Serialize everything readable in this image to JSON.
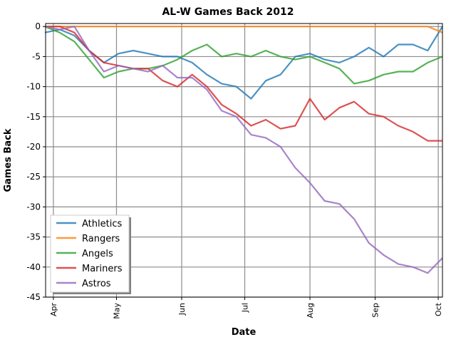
{
  "chart_data": {
    "type": "line",
    "title": "AL-W Games Back 2012",
    "x_label": "Date",
    "y_label": "Games Back",
    "x": [
      88,
      95,
      102,
      109,
      116,
      123,
      130,
      137,
      144,
      151,
      158,
      165,
      172,
      179,
      186,
      193,
      200,
      207,
      214,
      221,
      228,
      235,
      242,
      249,
      256,
      263,
      270,
      277
    ],
    "series": [
      {
        "name": "Athletics",
        "color": "#1f77b4",
        "values": [
          -1,
          -0.5,
          -1.5,
          -4,
          -6,
          -4.5,
          -4,
          -4.5,
          -5,
          -5,
          -6,
          -8,
          -9.5,
          -10,
          -12,
          -9,
          -8,
          -5,
          -4.5,
          -5.5,
          -6,
          -5,
          -3.5,
          -5,
          -3,
          -3,
          -4,
          0
        ]
      },
      {
        "name": "Rangers",
        "color": "#ff7f0e",
        "values": [
          0,
          0,
          0,
          0,
          0,
          0,
          0,
          0,
          0,
          0,
          0,
          0,
          0,
          0,
          0,
          0,
          0,
          0,
          0,
          0,
          0,
          0,
          0,
          0,
          0,
          0,
          0,
          -1
        ]
      },
      {
        "name": "Angels",
        "color": "#2ca02c",
        "values": [
          0,
          -1,
          -2.5,
          -5.5,
          -8.5,
          -7.5,
          -7,
          -7,
          -6.5,
          -5.5,
          -4,
          -3,
          -5,
          -4.5,
          -5,
          -4,
          -5,
          -5.5,
          -5,
          -6,
          -7,
          -9.5,
          -9,
          -8,
          -7.5,
          -7.5,
          -6,
          -5
        ]
      },
      {
        "name": "Mariners",
        "color": "#d62728",
        "values": [
          0,
          0,
          -1,
          -4,
          -6,
          -6.5,
          -7,
          -7,
          -9,
          -10,
          -8,
          -10,
          -13,
          -14.5,
          -16.5,
          -15.5,
          -17,
          -16.5,
          -12,
          -15.5,
          -13.5,
          -12.5,
          -14.5,
          -15,
          -16.5,
          -17.5,
          -19,
          -19
        ]
      },
      {
        "name": "Astros",
        "color": "#9467bd",
        "values": [
          0,
          -0.5,
          0,
          -4,
          -7.5,
          -6.5,
          -7,
          -7.5,
          -6.5,
          -8.5,
          -8.5,
          -10.5,
          -14,
          -15,
          -18,
          -18.5,
          -20,
          -23.5,
          -26,
          -29,
          -29.5,
          -32,
          -36,
          -38,
          -39.5,
          -40,
          -41,
          -38.5
        ]
      }
    ],
    "xlim": [
      88.3,
      277
    ],
    "xticks": [
      {
        "value": 92,
        "label": "Apr"
      },
      {
        "value": 122,
        "label": "May"
      },
      {
        "value": 153,
        "label": "Jun"
      },
      {
        "value": 183,
        "label": "Jul"
      },
      {
        "value": 214,
        "label": "Aug"
      },
      {
        "value": 245,
        "label": "Sep"
      },
      {
        "value": 275,
        "label": "Oct"
      }
    ],
    "ylim": [
      -45,
      0.5
    ],
    "yticks": [
      -45,
      -40,
      -35,
      -30,
      -25,
      -20,
      -15,
      -10,
      -5,
      0
    ],
    "grid": true,
    "legend": "lower left"
  }
}
